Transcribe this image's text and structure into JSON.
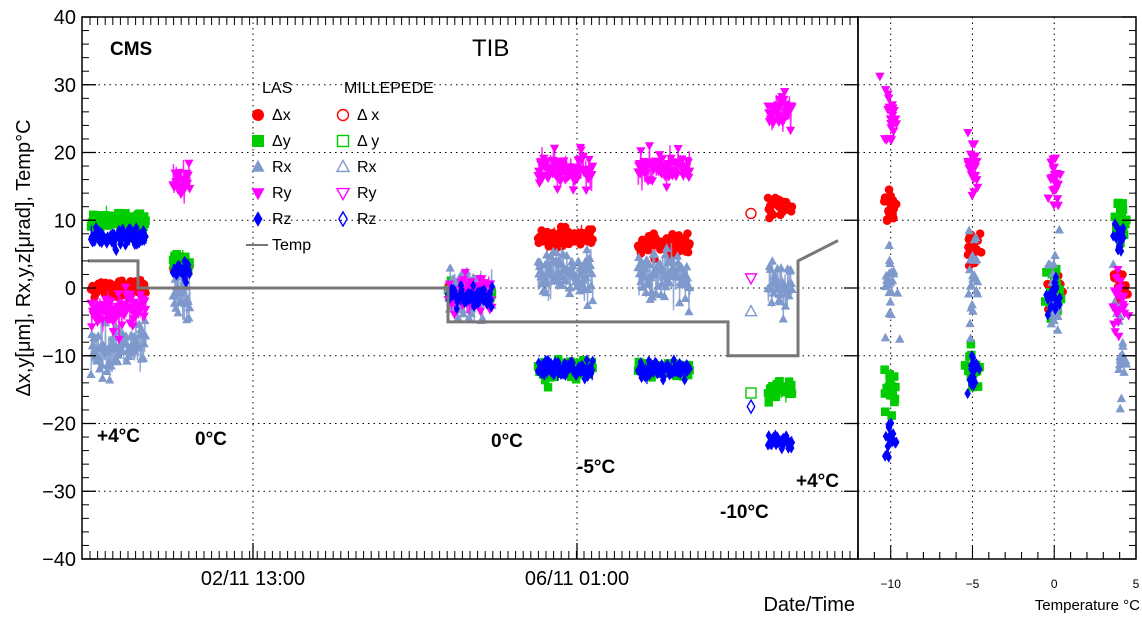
{
  "chart_data": [
    {
      "type": "scatter",
      "panel": "time-history",
      "title": "TIB",
      "experiment_label": "CMS",
      "xlabel": "Date/Time",
      "ylabel": "Δx,y[μm], Rx,y,z[μrad], Temp°C",
      "x_ticks": [
        "02/11 13:00",
        "06/11 01:00"
      ],
      "ylim": [
        -40,
        40
      ],
      "y_ticks": [
        -40,
        -30,
        -20,
        -10,
        0,
        10,
        20,
        30,
        40
      ],
      "grid": true,
      "legend_position": "top-left",
      "legend_headers": {
        "las": "LAS",
        "millepede": "MILLEPEDE"
      },
      "series": [
        {
          "name": "Δx",
          "group": "LAS",
          "color": "#ff0000",
          "marker": "filled-circle",
          "segments": [
            [
              0.3,
              0
            ],
            [
              8.5,
              3
            ],
            [
              36,
              -0.5
            ],
            [
              45,
              7.5
            ],
            [
              55,
              6.5
            ],
            [
              68,
              12
            ]
          ]
        },
        {
          "name": "Δy",
          "group": "LAS",
          "color": "#00cc00",
          "marker": "filled-square",
          "segments": [
            [
              0.3,
              10
            ],
            [
              8.5,
              4
            ],
            [
              36,
              -0.5
            ],
            [
              45,
              -12
            ],
            [
              55,
              -12
            ],
            [
              68,
              -15
            ]
          ]
        },
        {
          "name": "Rx",
          "group": "LAS",
          "color": "#7f99cc",
          "marker": "filled-triangle-up",
          "segments": [
            [
              0.3,
              -9
            ],
            [
              8.5,
              -1.5
            ],
            [
              36,
              -1
            ],
            [
              45,
              2
            ],
            [
              55,
              2
            ],
            [
              68,
              0
            ]
          ]
        },
        {
          "name": "Ry",
          "group": "LAS",
          "color": "#ff00ff",
          "marker": "filled-triangle-down",
          "segments": [
            [
              0.3,
              -3
            ],
            [
              8.5,
              16
            ],
            [
              36,
              -1
            ],
            [
              45,
              17.5
            ],
            [
              55,
              17.5
            ],
            [
              68,
              26
            ]
          ]
        },
        {
          "name": "Rz",
          "group": "LAS",
          "color": "#0000ff",
          "marker": "filled-diamond",
          "segments": [
            [
              0.3,
              7.5
            ],
            [
              8.5,
              2.5
            ],
            [
              36,
              -1.5
            ],
            [
              45,
              -12
            ],
            [
              55,
              -12
            ],
            [
              68,
              -22.5
            ]
          ]
        },
        {
          "name": "Temp",
          "group": "LAS",
          "color": "#777777",
          "marker": "line",
          "points": [
            [
              0,
              4
            ],
            [
              5,
              4
            ],
            [
              5,
              0
            ],
            [
              36,
              0
            ],
            [
              36,
              -5
            ],
            [
              64,
              -5
            ],
            [
              64,
              -10
            ],
            [
              71,
              -10
            ],
            [
              71,
              4
            ],
            [
              75,
              7
            ]
          ]
        },
        {
          "name": "Δ x",
          "group": "MILLEPEDE",
          "color": "#ff0000",
          "marker": "open-circle",
          "value": 11
        },
        {
          "name": "Δ y",
          "group": "MILLEPEDE",
          "color": "#00cc00",
          "marker": "open-square",
          "value": -15.5
        },
        {
          "name": "Rx",
          "group": "MILLEPEDE",
          "color": "#7f99cc",
          "marker": "open-triangle-up",
          "value": -3.5
        },
        {
          "name": "Ry",
          "group": "MILLEPEDE",
          "color": "#ff00ff",
          "marker": "open-triangle-down",
          "value": 1.5
        },
        {
          "name": "Rz",
          "group": "MILLEPEDE",
          "color": "#0000ff",
          "marker": "open-diamond",
          "value": -17.5
        }
      ],
      "annotations": [
        {
          "text": "+4°C"
        },
        {
          "text": "0°C"
        },
        {
          "text": "0°C"
        },
        {
          "text": "-5°C"
        },
        {
          "text": "-10°C"
        },
        {
          "text": "+4°C"
        }
      ]
    },
    {
      "type": "scatter",
      "panel": "vs-temperature",
      "xlabel": "Temperature °C",
      "xlim": [
        -12,
        5
      ],
      "x_ticks": [
        -10,
        -5,
        0,
        5
      ],
      "ylim": [
        -40,
        40
      ],
      "grid": true,
      "clusters": [
        {
          "temperature": -10,
          "dx": 12,
          "dy": -15,
          "rx": 0,
          "ry": 26,
          "rz": -22.5
        },
        {
          "temperature": -5,
          "dx": 6.5,
          "dy": -12,
          "rx": 2,
          "ry": 17.5,
          "rz": -12
        },
        {
          "temperature": 0,
          "dx": -0.5,
          "dy": 0,
          "rx": -1,
          "ry": 16,
          "rz": -1.5
        },
        {
          "temperature": 4,
          "dx": 0,
          "dy": 10,
          "rx": -9,
          "ry": -3,
          "rz": 7.5
        }
      ]
    }
  ]
}
